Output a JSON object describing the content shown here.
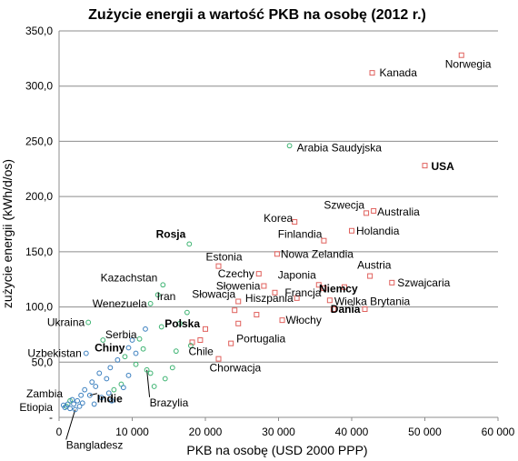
{
  "chart_data": {
    "type": "scatter",
    "title": "Zużycie energii a wartość PKB na osobę (2012 r.)",
    "xlabel": "PKB na osobę (USD 2000 PPP)",
    "ylabel": "zużycie energii (kWh/d/os)",
    "xlim": [
      0,
      60000
    ],
    "ylim": [
      0,
      350
    ],
    "x_ticks": [
      0,
      10000,
      20000,
      30000,
      40000,
      50000,
      60000
    ],
    "x_tick_labels": [
      "0",
      "10 000",
      "20 000",
      "30 000",
      "40 000",
      "50 000",
      "60 000"
    ],
    "y_ticks": [
      0,
      50,
      100,
      150,
      200,
      250,
      300,
      350
    ],
    "y_tick_labels": [
      "-",
      "50,0",
      "100,0",
      "150,0",
      "200,0",
      "250,0",
      "300,0",
      "350,0"
    ],
    "grid": "horizontal",
    "legend": "none",
    "colors": {
      "red": "#e0605c",
      "green": "#3cb371",
      "blue": "#3a7fbf",
      "grid": "#8c8c8c"
    },
    "series": [
      {
        "marker": "square",
        "color": "#e0605c",
        "points": [
          {
            "label": "Norwegia",
            "x": 55000,
            "y": 328
          },
          {
            "label": "Kanada",
            "x": 42800,
            "y": 312
          },
          {
            "label": "USA",
            "x": 50000,
            "y": 228,
            "bold": true
          },
          {
            "label": "Szwecja",
            "x": 42000,
            "y": 185
          },
          {
            "label": "Australia",
            "x": 43000,
            "y": 187
          },
          {
            "label": "Korea",
            "x": 32200,
            "y": 177
          },
          {
            "label": "Holandia",
            "x": 40000,
            "y": 169
          },
          {
            "label": "Finlandia",
            "x": 36200,
            "y": 160
          },
          {
            "label": "Nowa Zelandia",
            "x": 29800,
            "y": 148
          },
          {
            "label": "Estonia",
            "x": 21800,
            "y": 137
          },
          {
            "label": "Czechy",
            "x": 27300,
            "y": 130
          },
          {
            "label": "Austria",
            "x": 42500,
            "y": 128
          },
          {
            "label": "Szwajcaria",
            "x": 45500,
            "y": 122
          },
          {
            "label": "Japonia",
            "x": 35500,
            "y": 120
          },
          {
            "label": "Słowenia",
            "x": 28000,
            "y": 119
          },
          {
            "label": "Niemcy",
            "x": 39000,
            "y": 118,
            "bold": true
          },
          {
            "label": "Francja",
            "x": 36200,
            "y": 117
          },
          {
            "label": "Słowacja",
            "x": 24500,
            "y": 105
          },
          {
            "label": "Hiszpania",
            "x": 32500,
            "y": 108
          },
          {
            "label": "Wielka Brytania",
            "x": 37000,
            "y": 106
          },
          {
            "label": "Dania",
            "x": 41800,
            "y": 98,
            "bold": true
          },
          {
            "label": "Włochy",
            "x": 30500,
            "y": 88
          },
          {
            "label": "Polska",
            "x": 20000,
            "y": 80,
            "bold": true
          },
          {
            "label": "Portugalia",
            "x": 23500,
            "y": 67
          },
          {
            "label": "Chorwacja",
            "x": 21800,
            "y": 53
          },
          {
            "label": "Chile",
            "x": 18200,
            "y": 68
          },
          {
            "x": 27000,
            "y": 93
          },
          {
            "x": 24500,
            "y": 85
          },
          {
            "x": 29500,
            "y": 113
          },
          {
            "x": 37500,
            "y": 98
          },
          {
            "x": 19300,
            "y": 70
          },
          {
            "x": 24000,
            "y": 97
          }
        ]
      },
      {
        "marker": "circle",
        "color": "#3cb371",
        "points": [
          {
            "label": "Arabia Saudyjska",
            "x": 31500,
            "y": 246
          },
          {
            "label": "Rosja",
            "x": 17800,
            "y": 157,
            "bold": true
          },
          {
            "label": "Kazachstan",
            "x": 14200,
            "y": 120
          },
          {
            "label": "Iran",
            "x": 13500,
            "y": 111
          },
          {
            "label": "Wenezuela",
            "x": 12500,
            "y": 103
          },
          {
            "label": "Ukraina",
            "x": 4000,
            "y": 86
          },
          {
            "label": "Serbia",
            "x": 11000,
            "y": 71
          },
          {
            "label": "Brazylia",
            "x": 12000,
            "y": 43
          },
          {
            "label": "Zambia",
            "x": 1500,
            "y": 15
          },
          {
            "label": "Etiopia",
            "x": 1000,
            "y": 10
          },
          {
            "x": 16500,
            "y": 85
          },
          {
            "x": 17500,
            "y": 95
          },
          {
            "x": 16000,
            "y": 60
          },
          {
            "x": 15500,
            "y": 45
          },
          {
            "x": 14500,
            "y": 35
          },
          {
            "x": 18000,
            "y": 65
          },
          {
            "x": 10500,
            "y": 48
          },
          {
            "x": 12500,
            "y": 40
          },
          {
            "x": 8500,
            "y": 30
          },
          {
            "x": 9000,
            "y": 55
          },
          {
            "x": 6000,
            "y": 70
          },
          {
            "x": 14000,
            "y": 82
          },
          {
            "x": 11500,
            "y": 62
          },
          {
            "x": 7500,
            "y": 25
          },
          {
            "x": 13000,
            "y": 28
          }
        ]
      },
      {
        "marker": "circle",
        "color": "#3a7fbf",
        "points": [
          {
            "label": "Uzbekistan",
            "x": 3700,
            "y": 58
          },
          {
            "label": "Chiny",
            "x": 9500,
            "y": 63,
            "bold": true
          },
          {
            "label": "Indie",
            "x": 4200,
            "y": 20,
            "bold": true
          },
          {
            "label": "Bangladesz",
            "x": 2200,
            "y": 7
          },
          {
            "x": 11800,
            "y": 80
          },
          {
            "x": 10000,
            "y": 70
          },
          {
            "x": 8000,
            "y": 52
          },
          {
            "x": 7000,
            "y": 45
          },
          {
            "x": 6500,
            "y": 35
          },
          {
            "x": 5500,
            "y": 40
          },
          {
            "x": 5000,
            "y": 28
          },
          {
            "x": 4500,
            "y": 32
          },
          {
            "x": 3500,
            "y": 25
          },
          {
            "x": 3000,
            "y": 20
          },
          {
            "x": 2500,
            "y": 15
          },
          {
            "x": 2000,
            "y": 12
          },
          {
            "x": 1500,
            "y": 8
          },
          {
            "x": 1200,
            "y": 12
          },
          {
            "x": 800,
            "y": 9
          },
          {
            "x": 600,
            "y": 11
          },
          {
            "x": 2800,
            "y": 10
          },
          {
            "x": 3200,
            "y": 13
          },
          {
            "x": 5800,
            "y": 18
          },
          {
            "x": 6800,
            "y": 22
          },
          {
            "x": 7200,
            "y": 15
          },
          {
            "x": 4800,
            "y": 12
          },
          {
            "x": 9500,
            "y": 38
          },
          {
            "x": 8800,
            "y": 27
          },
          {
            "x": 10500,
            "y": 58
          },
          {
            "x": 1800,
            "y": 16
          }
        ]
      }
    ]
  }
}
